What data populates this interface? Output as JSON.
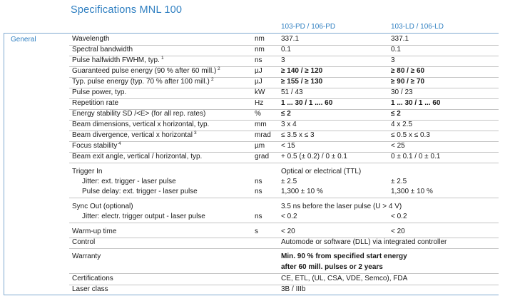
{
  "title": "Specifications MNL 100",
  "columns": {
    "pd": "103-PD / 106-PD",
    "ld": "103-LD / 106-LD"
  },
  "section": "General",
  "rows": [
    {
      "param": "Wavelength",
      "unit": "nm",
      "pd": "337.1",
      "ld": "337.1"
    },
    {
      "param": "Spectral bandwidth",
      "unit": "nm",
      "pd": "0.1",
      "ld": "0.1"
    },
    {
      "param": "Pulse halfwidth FWHM, typ.",
      "sup": "1",
      "unit": "ns",
      "pd": "3",
      "ld": "3"
    },
    {
      "param": "Guaranteed pulse energy (90 % after 60 mill.)",
      "sup": "2",
      "unit": "µJ",
      "pd": "≥ 140 / ≥ 120",
      "ld": "≥ 80 / ≥ 60",
      "bold": true
    },
    {
      "param": "Typ. pulse energy (typ. 70 % after 100 mill.)",
      "sup": "2",
      "unit": "µJ",
      "pd": "≥ 155 / ≥ 130",
      "ld": "≥ 90 / ≥ 70",
      "bold": true
    },
    {
      "param": "Pulse power, typ.",
      "unit": "kW",
      "pd": "51 / 43",
      "ld": "30 / 23"
    },
    {
      "param": "Repetition rate",
      "unit": "Hz",
      "pd": "1 ... 30 / 1 .... 60",
      "ld": "1 ... 30 / 1 ... 60",
      "bold": true
    },
    {
      "param": "Energy stability SD /<E> (for all rep. rates)",
      "unit": "%",
      "pd": "≤ 2",
      "ld": "≤ 2",
      "bold": true
    },
    {
      "param": "Beam dimensions, vertical x horizontal, typ.",
      "unit": "mm",
      "pd": "3 x 4",
      "ld": "4 x 2.5"
    },
    {
      "param": "Beam divergence, vertical x horizontal",
      "sup": "3",
      "unit": "mrad",
      "pd": "≤ 3.5 x ≤ 3",
      "ld": "≤ 0.5 x ≤ 0.3"
    },
    {
      "param": "Focus stability",
      "sup": "4",
      "unit": "µm",
      "pd": "< 15",
      "ld": "< 25"
    },
    {
      "param": "Beam exit angle, vertical / horizontal, typ.",
      "unit": "grad",
      "pd": "+ 0.5 (± 0.2) / 0 ± 0.1",
      "ld": "0 ± 0.1 / 0 ± 0.1"
    },
    {
      "param": "Trigger In",
      "span": "Optical or electrical (TTL)"
    },
    {
      "param": "Jitter: ext. trigger - laser pulse",
      "unit": "ns",
      "pd": "± 2.5",
      "ld": "± 2.5"
    },
    {
      "param": "Pulse delay: ext. trigger - laser pulse",
      "unit": "ns",
      "pd": "1,300 ± 10 %",
      "ld": "1,300 ± 10 %"
    },
    {
      "param": "Sync Out (optional)",
      "span": "3.5 ns before the laser pulse (U > 4 V)"
    },
    {
      "param": "Jitter: electr. trigger output - laser pulse",
      "unit": "ns",
      "pd": "< 0.2",
      "ld": "< 0.2"
    },
    {
      "param": "Warm-up time",
      "unit": "s",
      "pd": "< 20",
      "ld": "< 20"
    },
    {
      "param": "Control",
      "span": "Automode or software (DLL) via integrated controller"
    },
    {
      "param": "Warranty",
      "span": "Min. 90 % from specified start energy",
      "span2": "after 60 mill. pulses or 2 years"
    },
    {
      "param": "Certifications",
      "span": "CE, ETL, (UL, CSA, VDE, Semco), FDA"
    },
    {
      "param": "Laser class",
      "span": "3B / IIIb"
    }
  ]
}
